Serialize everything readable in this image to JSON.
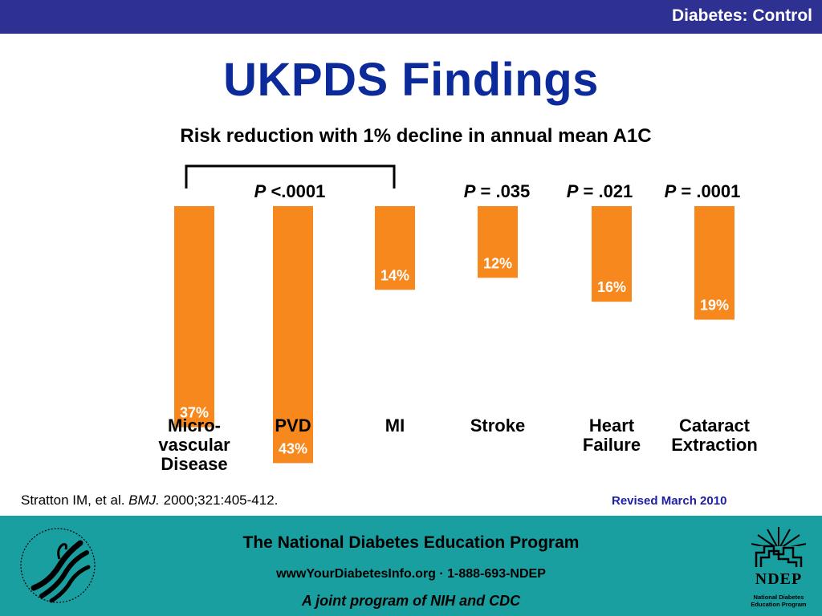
{
  "header": {
    "section_label": "Diabetes: Control"
  },
  "title": "UKPDS Findings",
  "subtitle": "Risk reduction with 1% decline in annual mean A1C",
  "chart_data": {
    "type": "bar",
    "orientation": "downward",
    "categories": [
      [
        "Micro-",
        "vascular",
        "Disease"
      ],
      [
        "PVD"
      ],
      [
        "MI"
      ],
      [
        "Stroke"
      ],
      [
        "Heart",
        "Failure"
      ],
      [
        "Cataract",
        "Extraction"
      ]
    ],
    "values": [
      37,
      43,
      14,
      12,
      16,
      19
    ],
    "value_labels": [
      "37%",
      "43%",
      "14%",
      "12%",
      "16%",
      "19%"
    ],
    "p_values": [
      {
        "p": "P",
        "rest": " <.0001",
        "spans": [
          0,
          2
        ]
      },
      {
        "p": "P",
        "rest": " = .035",
        "spans": [
          3,
          3
        ]
      },
      {
        "p": "P",
        "rest": " = .021",
        "spans": [
          4,
          4
        ]
      },
      {
        "p": "P",
        "rest": " = .0001",
        "spans": [
          5,
          5
        ]
      }
    ],
    "bar_color": "#f7881e",
    "label_color": "#ffffff"
  },
  "citation": {
    "authors": "Stratton IM, et al. ",
    "journal": "BMJ.",
    "details": " 2000;321:405-412."
  },
  "revised": "Revised March 2010",
  "footer": {
    "org": "The National Diabetes Education Program",
    "contact": "wwwYourDiabetesInfo.org · 1-888-693-NDEP",
    "tagline": "A joint program of NIH and CDC",
    "ndep": "NDEP",
    "ndep_sub_1": "National Diabetes",
    "ndep_sub_2": "Education Program"
  },
  "colors": {
    "header_bar": "#2e3192",
    "title": "#0d2a9b",
    "footer_bg": "#1a9fa0",
    "revised": "#1e1ea8"
  },
  "icons": {
    "left_logo": "hhs-eagle-seal-icon",
    "right_logo": "ndep-sunrise-icon"
  }
}
